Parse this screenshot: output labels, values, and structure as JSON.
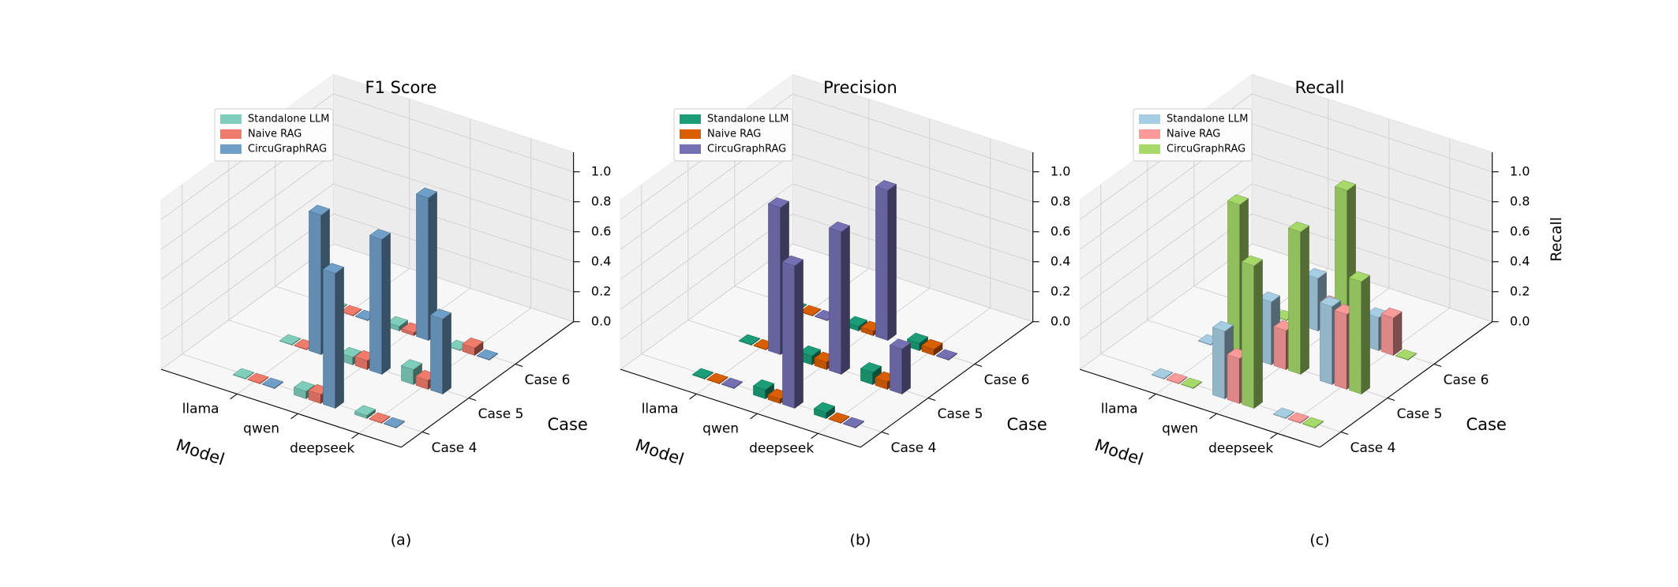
{
  "chart_data": [
    {
      "type": "bar3d",
      "title": "F1 Score",
      "caption": "(a)",
      "xlabel": "Model",
      "ylabel": "Case",
      "zlabel": "F1 Score",
      "models": [
        "llama",
        "qwen",
        "deepseek"
      ],
      "cases": [
        "Case 4",
        "Case 5",
        "Case 6"
      ],
      "zticks": [
        "0.0",
        "0.2",
        "0.4",
        "0.6",
        "0.8",
        "1.0"
      ],
      "zlim": [
        0,
        1
      ],
      "legend_position": "top-left",
      "series": [
        {
          "name": "Standalone LLM",
          "color": "#7fcdbb",
          "values": [
            [
              0.0,
              0.0,
              0.0
            ],
            [
              0.05,
              0.05,
              0.03
            ],
            [
              0.02,
              0.1,
              0.0
            ]
          ]
        },
        {
          "name": "Naive RAG",
          "color": "#ef7b6b",
          "values": [
            [
              0.0,
              0.0,
              0.0
            ],
            [
              0.06,
              0.06,
              0.02
            ],
            [
              0.0,
              0.06,
              0.05
            ]
          ]
        },
        {
          "name": "CircuGraphRAG",
          "color": "#6f9fc8",
          "values": [
            [
              0.0,
              0.93,
              0.0
            ],
            [
              0.9,
              0.9,
              0.95
            ],
            [
              0.0,
              0.5,
              0.0
            ]
          ]
        }
      ]
    },
    {
      "type": "bar3d",
      "title": "Precision",
      "caption": "(b)",
      "xlabel": "Model",
      "ylabel": "Case",
      "zlabel": "Precision",
      "models": [
        "llama",
        "qwen",
        "deepseek"
      ],
      "cases": [
        "Case 4",
        "Case 5",
        "Case 6"
      ],
      "zticks": [
        "0.0",
        "0.2",
        "0.4",
        "0.6",
        "0.8",
        "1.0"
      ],
      "zlim": [
        0,
        1
      ],
      "legend_position": "top-left",
      "series": [
        {
          "name": "Standalone LLM",
          "color": "#1b9e77",
          "values": [
            [
              0.0,
              0.0,
              0.0
            ],
            [
              0.06,
              0.06,
              0.03
            ],
            [
              0.04,
              0.08,
              0.05
            ]
          ]
        },
        {
          "name": "Naive RAG",
          "color": "#d95f02",
          "values": [
            [
              0.0,
              0.0,
              0.0
            ],
            [
              0.03,
              0.05,
              0.03
            ],
            [
              0.0,
              0.05,
              0.04
            ]
          ]
        },
        {
          "name": "CircuGraphRAG",
          "color": "#7570b3",
          "values": [
            [
              0.0,
              0.98,
              0.0
            ],
            [
              0.95,
              0.95,
              1.0
            ],
            [
              0.0,
              0.3,
              0.0
            ]
          ]
        }
      ]
    },
    {
      "type": "bar3d",
      "title": "Recall",
      "caption": "(c)",
      "xlabel": "Model",
      "ylabel": "Case",
      "zlabel": "Recall",
      "models": [
        "llama",
        "qwen",
        "deepseek"
      ],
      "cases": [
        "Case 4",
        "Case 5",
        "Case 6"
      ],
      "zticks": [
        "0.0",
        "0.2",
        "0.4",
        "0.6",
        "0.8",
        "1.0"
      ],
      "zlim": [
        0,
        1
      ],
      "legend_position": "top-left",
      "series": [
        {
          "name": "Standalone LLM",
          "color": "#a6cee3",
          "values": [
            [
              0.0,
              0.0,
              0.0
            ],
            [
              0.45,
              0.42,
              0.35
            ],
            [
              0.0,
              0.52,
              0.22
            ]
          ]
        },
        {
          "name": "Naive RAG",
          "color": "#fb9a99",
          "values": [
            [
              0.0,
              0.0,
              0.0
            ],
            [
              0.3,
              0.26,
              0.2
            ],
            [
              0.0,
              0.5,
              0.25
            ]
          ]
        },
        {
          "name": "CircuGraphRAG",
          "color": "#a6d96a",
          "values": [
            [
              0.0,
              1.0,
              0.0
            ],
            [
              0.95,
              0.95,
              1.0
            ],
            [
              0.0,
              0.75,
              0.0
            ]
          ]
        }
      ]
    }
  ]
}
